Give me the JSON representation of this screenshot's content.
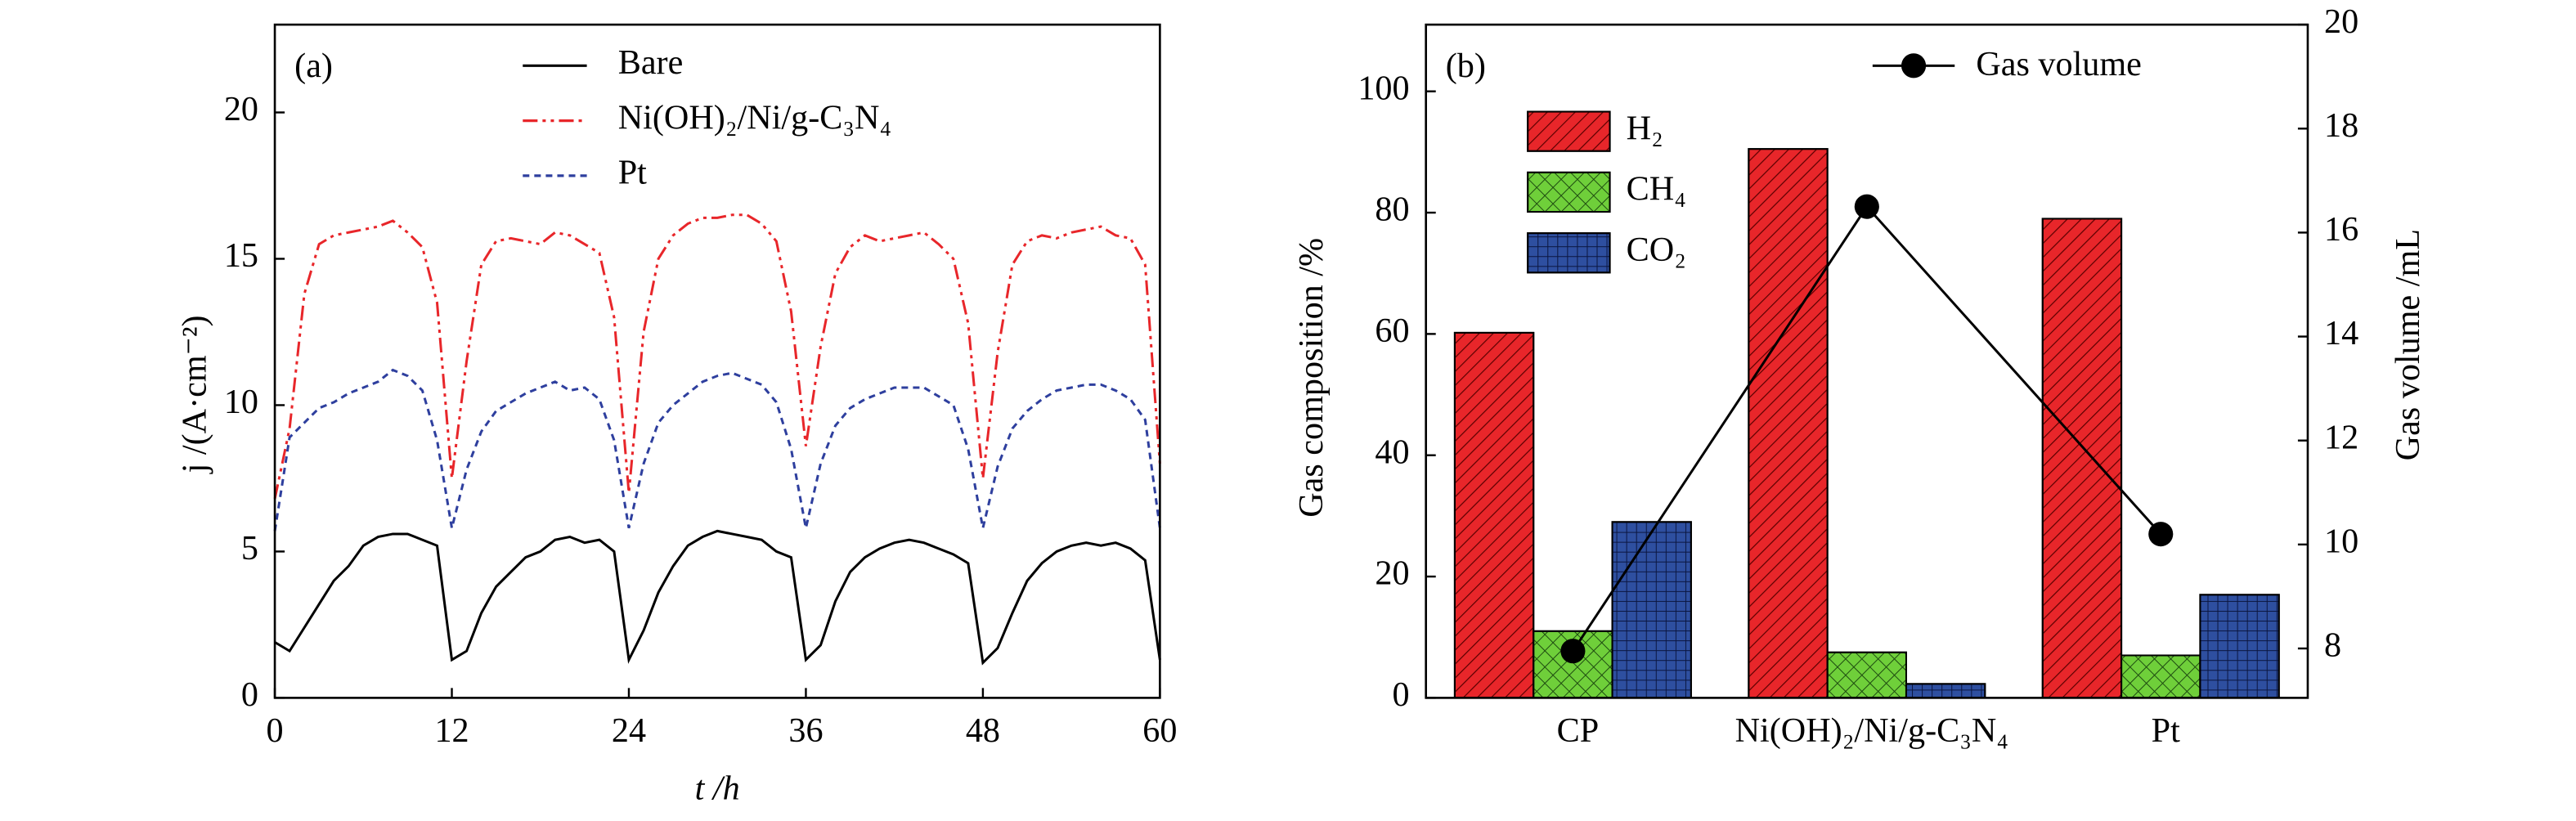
{
  "chart_data": [
    {
      "type": "line",
      "panel_label": "(a)",
      "x_label": "t /h",
      "y_label": "j /(A·cm⁻²)",
      "x": [
        0,
        1,
        2,
        3,
        4,
        5,
        6,
        7,
        8,
        9,
        10,
        11,
        12,
        13,
        14,
        15,
        16,
        17,
        18,
        19,
        20,
        21,
        22,
        23,
        24,
        25,
        26,
        27,
        28,
        29,
        30,
        31,
        32,
        33,
        34,
        35,
        36,
        37,
        38,
        39,
        40,
        41,
        42,
        43,
        44,
        45,
        46,
        47,
        48,
        49,
        50,
        51,
        52,
        53,
        54,
        55,
        56,
        57,
        58,
        59,
        60
      ],
      "xlim": [
        0,
        60
      ],
      "xticks": [
        0,
        12,
        24,
        36,
        48,
        60
      ],
      "ylim": [
        0,
        23
      ],
      "yticks": [
        0,
        5,
        10,
        15,
        20
      ],
      "series": [
        {
          "name": "Bare",
          "color": "#000000",
          "linestyle": "solid",
          "values": [
            1.9,
            1.6,
            2.4,
            3.2,
            4.0,
            4.5,
            5.2,
            5.5,
            5.6,
            5.6,
            5.4,
            5.2,
            1.3,
            1.6,
            2.9,
            3.8,
            4.3,
            4.8,
            5.0,
            5.4,
            5.5,
            5.3,
            5.4,
            5.0,
            1.3,
            2.3,
            3.6,
            4.5,
            5.2,
            5.5,
            5.7,
            5.6,
            5.5,
            5.4,
            5.0,
            4.8,
            1.3,
            1.8,
            3.3,
            4.3,
            4.8,
            5.1,
            5.3,
            5.4,
            5.3,
            5.1,
            4.9,
            4.6,
            1.2,
            1.7,
            2.9,
            4.0,
            4.6,
            5.0,
            5.2,
            5.3,
            5.2,
            5.3,
            5.1,
            4.7,
            1.3
          ]
        },
        {
          "name": "Ni(OH)₂/Ni/g-C₃N₄",
          "color": "#e8262a",
          "linestyle": "dashdotdot",
          "values": [
            6.8,
            9.2,
            13.8,
            15.5,
            15.8,
            15.9,
            16.0,
            16.1,
            16.3,
            15.9,
            15.4,
            13.5,
            7.5,
            11.5,
            14.8,
            15.6,
            15.7,
            15.6,
            15.5,
            15.9,
            15.8,
            15.5,
            15.2,
            13.0,
            7.0,
            12.5,
            15.0,
            15.8,
            16.2,
            16.4,
            16.4,
            16.5,
            16.5,
            16.2,
            15.6,
            13.2,
            8.6,
            12.0,
            14.5,
            15.4,
            15.8,
            15.6,
            15.7,
            15.8,
            15.9,
            15.5,
            15.0,
            12.8,
            7.5,
            11.8,
            14.8,
            15.6,
            15.8,
            15.7,
            15.9,
            16.0,
            16.1,
            15.8,
            15.7,
            14.8,
            8.0
          ]
        },
        {
          "name": "Pt",
          "color": "#2e3f9e",
          "linestyle": "dashed",
          "values": [
            5.7,
            8.9,
            9.4,
            9.9,
            10.1,
            10.4,
            10.6,
            10.8,
            11.2,
            11.0,
            10.5,
            8.8,
            5.8,
            7.8,
            9.1,
            9.8,
            10.1,
            10.4,
            10.6,
            10.8,
            10.5,
            10.6,
            10.2,
            8.8,
            5.8,
            8.0,
            9.4,
            10.0,
            10.4,
            10.8,
            11.0,
            11.1,
            10.9,
            10.7,
            10.1,
            8.5,
            5.8,
            8.0,
            9.3,
            9.9,
            10.2,
            10.4,
            10.6,
            10.6,
            10.6,
            10.3,
            10.0,
            8.5,
            5.8,
            7.9,
            9.2,
            9.8,
            10.2,
            10.5,
            10.6,
            10.7,
            10.7,
            10.5,
            10.2,
            9.5,
            5.8
          ]
        }
      ]
    },
    {
      "type": "bar",
      "panel_label": "(b)",
      "y_label": "Gas composition /%",
      "y2_label": "Gas volume /mL",
      "categories": [
        "CP",
        "Ni(OH)₂/Ni/g-C₃N₄",
        "Pt"
      ],
      "ylim": [
        0,
        111
      ],
      "yticks": [
        0,
        20,
        40,
        60,
        80,
        100
      ],
      "y2lim": [
        7.05,
        20
      ],
      "y2ticks": [
        8,
        10,
        12,
        14,
        16,
        18,
        20
      ],
      "series": [
        {
          "name": "H₂",
          "color": "#e8262a",
          "values": [
            60.2,
            90.5,
            79
          ]
        },
        {
          "name": "CH₄",
          "color": "#6fcf3a",
          "values": [
            11,
            7.5,
            7
          ]
        },
        {
          "name": "CO₂",
          "color": "#2e4fa0",
          "values": [
            29,
            2.3,
            17
          ]
        },
        {
          "name": "Gas volume",
          "color": "#000000",
          "type": "line",
          "axis": "y2",
          "values": [
            7.95,
            16.5,
            10.2
          ]
        }
      ]
    }
  ]
}
